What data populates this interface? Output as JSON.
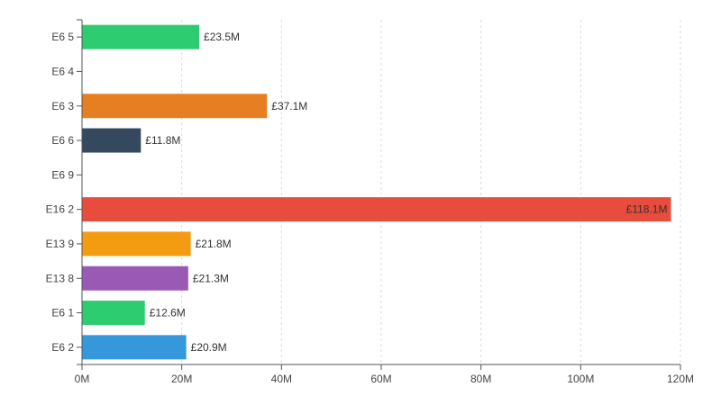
{
  "chart_data": {
    "type": "bar",
    "orientation": "horizontal",
    "title": "",
    "xlabel": "",
    "ylabel": "",
    "xlim": [
      0,
      120
    ],
    "x_ticks": [
      0,
      20,
      40,
      60,
      80,
      100,
      120
    ],
    "x_tick_labels": [
      "0M",
      "20M",
      "40M",
      "60M",
      "80M",
      "100M",
      "120M"
    ],
    "grid": "vertical-dashed",
    "categories": [
      "E6 5",
      "E6 4",
      "E6 3",
      "E6 6",
      "E6 9",
      "E16 2",
      "E13 9",
      "E13 8",
      "E6 1",
      "E6 2"
    ],
    "values": [
      23.5,
      null,
      37.1,
      11.8,
      null,
      118.1,
      21.8,
      21.3,
      12.6,
      20.9
    ],
    "value_labels": [
      "£23.5M",
      "",
      "£37.1M",
      "£11.8M",
      "",
      "£118.1M",
      "£21.8M",
      "£21.3M",
      "£12.6M",
      "£20.9M"
    ],
    "colors": [
      "#2ecc71",
      "#2ecc71",
      "#e67e22",
      "#34495e",
      "#34495e",
      "#e74c3c",
      "#f39c12",
      "#9b59b6",
      "#2ecc71",
      "#3498db"
    ],
    "unit": "£M"
  }
}
